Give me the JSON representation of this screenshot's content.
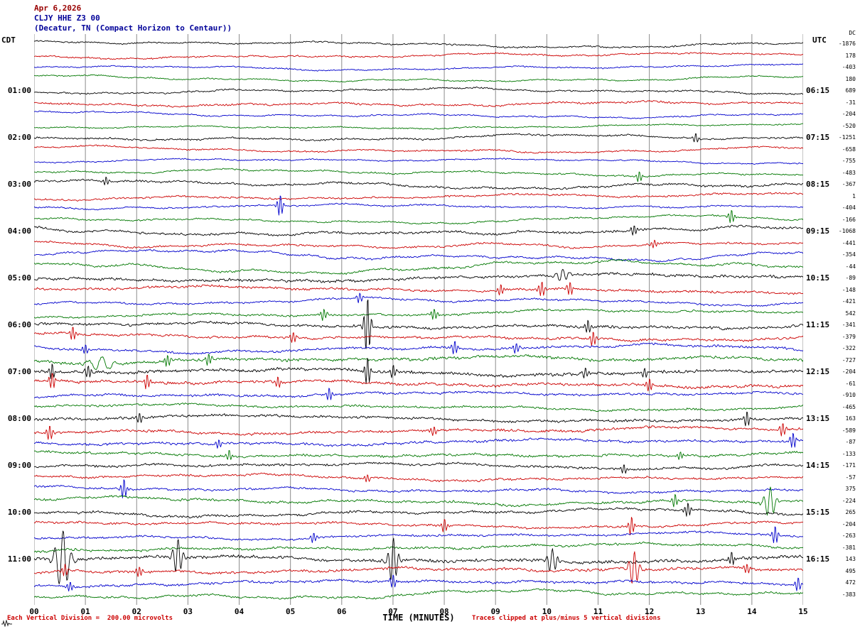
{
  "header": {
    "date": "Apr 6,2026",
    "station": "CLJY HHE Z3 00",
    "location": "(Decatur, TN (Compact Horizon to Centaur))"
  },
  "axes": {
    "left_tz": "CDT",
    "right_tz": "UTC",
    "dc_label": "DC",
    "x_label": "TIME (MINUTES)"
  },
  "footer": {
    "scale_note": "Each Vertical Division =  200.00 microvolts",
    "clip_note": "Traces clipped at plus/minus 5 vertical divisions"
  },
  "colors": {
    "date_text": "#990000",
    "station_text": "#000099",
    "note_text": "#cc0000",
    "label_text": "#000000",
    "grid": "#8c8c8c"
  },
  "chart_data": {
    "type": "line",
    "title": "Apr 6,2026 CLJY HHE Z3 00 (Decatur, TN (Compact Horizon to Centaur))",
    "xlabel": "TIME (MINUTES)",
    "x_range": [
      0,
      15
    ],
    "x_ticks": [
      "00",
      "01",
      "02",
      "03",
      "04",
      "05",
      "06",
      "07",
      "08",
      "09",
      "10",
      "11",
      "12",
      "13",
      "14",
      "15"
    ],
    "minutes_per_trace": 15,
    "traces_per_hour": 4,
    "trace_count": 48,
    "microvolts_per_division": "200.00",
    "clip_divisions": 5,
    "trace_color_cycle": [
      "#000000",
      "#cc0000",
      "#0000cc",
      "#007700"
    ],
    "left_time_labels": [
      "01:00",
      "02:00",
      "03:00",
      "04:00",
      "05:00",
      "06:00",
      "07:00",
      "08:00",
      "09:00",
      "10:00",
      "11:00"
    ],
    "right_time_labels": [
      "06:15",
      "07:15",
      "08:15",
      "09:15",
      "10:15",
      "11:15",
      "12:15",
      "13:15",
      "14:15",
      "15:15",
      "16:15"
    ],
    "dc_offsets": [
      -1876,
      178,
      -403,
      180,
      689,
      -31,
      -204,
      -520,
      -1251,
      -658,
      -755,
      -483,
      -367,
      1,
      -404,
      -166,
      -1068,
      -441,
      -354,
      -44,
      -89,
      -148,
      -421,
      542,
      -341,
      -379,
      -322,
      -727,
      -204,
      -61,
      -910,
      -465,
      163,
      -589,
      -87,
      -133,
      -171,
      -57,
      375,
      -224,
      265,
      -204,
      -263,
      -381,
      143,
      495,
      472,
      -383
    ],
    "activity": [
      1.2,
      1.2,
      1.0,
      1.0,
      1.2,
      1.4,
      1.0,
      1.0,
      1.4,
      1.2,
      1.0,
      1.2,
      1.6,
      1.4,
      1.2,
      1.2,
      1.8,
      1.4,
      1.4,
      1.6,
      2.0,
      1.8,
      1.4,
      1.6,
      2.0,
      1.8,
      1.8,
      2.2,
      2.4,
      2.2,
      1.8,
      1.6,
      2.0,
      2.0,
      1.8,
      1.8,
      1.8,
      1.6,
      1.6,
      1.8,
      1.8,
      1.6,
      1.6,
      1.8,
      2.4,
      2.0,
      1.8,
      1.6
    ],
    "slow_amp": [
      3,
      2.5,
      2.5,
      3.5,
      2.5,
      3,
      3,
      2.5,
      3,
      3,
      2.5,
      3,
      4,
      3,
      3,
      3.5,
      4.5,
      4,
      5,
      5.5,
      3.5,
      3,
      3.5,
      3.5,
      3,
      3,
      3.5,
      3.5,
      3,
      3,
      3,
      3,
      3,
      3,
      3,
      3.5,
      3,
      3,
      3,
      3.5,
      3.5,
      3,
      3,
      3.5,
      3,
      3,
      3,
      4.5
    ],
    "events": [
      {
        "trace": 8,
        "t": 12.9,
        "a": 7
      },
      {
        "trace": 11,
        "t": 11.8,
        "a": 8
      },
      {
        "trace": 12,
        "t": 1.4,
        "a": 6
      },
      {
        "trace": 14,
        "t": 4.8,
        "a": 16
      },
      {
        "trace": 15,
        "t": 13.6,
        "a": 10
      },
      {
        "trace": 16,
        "t": 11.7,
        "a": 8
      },
      {
        "trace": 17,
        "t": 12.1,
        "a": 6
      },
      {
        "trace": 20,
        "t": 10.3,
        "a": 10,
        "w": 0.12
      },
      {
        "trace": 21,
        "t": 9.1,
        "a": 9
      },
      {
        "trace": 21,
        "t": 9.9,
        "a": 12
      },
      {
        "trace": 21,
        "t": 10.45,
        "a": 10
      },
      {
        "trace": 22,
        "t": 6.35,
        "a": 8
      },
      {
        "trace": 23,
        "t": 5.65,
        "a": 9
      },
      {
        "trace": 23,
        "t": 7.8,
        "a": 9
      },
      {
        "trace": 24,
        "t": 6.5,
        "a": 42,
        "w": 0.07
      },
      {
        "trace": 24,
        "t": 10.8,
        "a": 10
      },
      {
        "trace": 25,
        "t": 0.75,
        "a": 10
      },
      {
        "trace": 25,
        "t": 5.05,
        "a": 8
      },
      {
        "trace": 25,
        "t": 10.9,
        "a": 12
      },
      {
        "trace": 26,
        "t": 1.0,
        "a": 8
      },
      {
        "trace": 26,
        "t": 8.2,
        "a": 10
      },
      {
        "trace": 26,
        "t": 9.4,
        "a": 8
      },
      {
        "trace": 27,
        "t": 1.3,
        "a": 10,
        "w": 0.25
      },
      {
        "trace": 27,
        "t": 2.6,
        "a": 8
      },
      {
        "trace": 27,
        "t": 3.4,
        "a": 8
      },
      {
        "trace": 28,
        "t": 0.35,
        "a": 12
      },
      {
        "trace": 28,
        "t": 1.05,
        "a": 10
      },
      {
        "trace": 28,
        "t": 6.5,
        "a": 20
      },
      {
        "trace": 28,
        "t": 7.0,
        "a": 10
      },
      {
        "trace": 28,
        "t": 10.75,
        "a": 8
      },
      {
        "trace": 28,
        "t": 11.9,
        "a": 8
      },
      {
        "trace": 29,
        "t": 0.35,
        "a": 14
      },
      {
        "trace": 29,
        "t": 2.2,
        "a": 10
      },
      {
        "trace": 29,
        "t": 4.75,
        "a": 8
      },
      {
        "trace": 29,
        "t": 12.0,
        "a": 10
      },
      {
        "trace": 30,
        "t": 5.75,
        "a": 10
      },
      {
        "trace": 32,
        "t": 2.05,
        "a": 8
      },
      {
        "trace": 32,
        "t": 13.9,
        "a": 12
      },
      {
        "trace": 33,
        "t": 0.3,
        "a": 12
      },
      {
        "trace": 33,
        "t": 7.8,
        "a": 8
      },
      {
        "trace": 33,
        "t": 14.6,
        "a": 10
      },
      {
        "trace": 34,
        "t": 3.6,
        "a": 8
      },
      {
        "trace": 34,
        "t": 14.8,
        "a": 12
      },
      {
        "trace": 35,
        "t": 3.8,
        "a": 8
      },
      {
        "trace": 35,
        "t": 12.6,
        "a": 7
      },
      {
        "trace": 36,
        "t": 11.5,
        "a": 8
      },
      {
        "trace": 37,
        "t": 6.5,
        "a": 6
      },
      {
        "trace": 38,
        "t": 1.75,
        "a": 16
      },
      {
        "trace": 39,
        "t": 12.5,
        "a": 10
      },
      {
        "trace": 39,
        "t": 14.35,
        "a": 22,
        "w": 0.12
      },
      {
        "trace": 40,
        "t": 12.75,
        "a": 10
      },
      {
        "trace": 41,
        "t": 8.0,
        "a": 10
      },
      {
        "trace": 41,
        "t": 11.65,
        "a": 14
      },
      {
        "trace": 42,
        "t": 5.45,
        "a": 8
      },
      {
        "trace": 42,
        "t": 14.45,
        "a": 14
      },
      {
        "trace": 44,
        "t": 0.55,
        "a": 42,
        "w": 0.15
      },
      {
        "trace": 44,
        "t": 2.8,
        "a": 26,
        "w": 0.1
      },
      {
        "trace": 44,
        "t": 7.0,
        "a": 32,
        "w": 0.1
      },
      {
        "trace": 44,
        "t": 10.1,
        "a": 18,
        "w": 0.1
      },
      {
        "trace": 44,
        "t": 13.6,
        "a": 10
      },
      {
        "trace": 45,
        "t": 0.6,
        "a": 10
      },
      {
        "trace": 45,
        "t": 2.05,
        "a": 8
      },
      {
        "trace": 45,
        "t": 11.7,
        "a": 26,
        "w": 0.1
      },
      {
        "trace": 45,
        "t": 13.9,
        "a": 8
      },
      {
        "trace": 46,
        "t": 0.7,
        "a": 8
      },
      {
        "trace": 46,
        "t": 7.0,
        "a": 10
      },
      {
        "trace": 46,
        "t": 14.9,
        "a": 10
      }
    ]
  }
}
